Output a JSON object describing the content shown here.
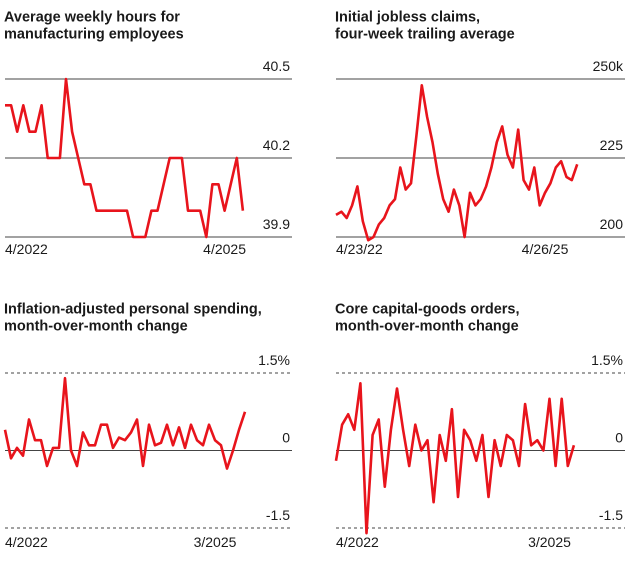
{
  "chart_data": [
    {
      "type": "line",
      "title": [
        "Average weekly hours for",
        "manufacturing employees"
      ],
      "color": "#e8141c",
      "categories": [
        "4/2022",
        null,
        null,
        null,
        null,
        null,
        null,
        null,
        null,
        null,
        null,
        null,
        null,
        null,
        null,
        null,
        null,
        null,
        null,
        null,
        null,
        null,
        null,
        null,
        null,
        null,
        null,
        null,
        null,
        null,
        null,
        null,
        null,
        null,
        null,
        null,
        "4/2025",
        null,
        null,
        null
      ],
      "values": [
        40.4,
        40.4,
        40.3,
        40.4,
        40.3,
        40.3,
        40.4,
        40.2,
        40.2,
        40.2,
        40.5,
        40.3,
        40.2,
        40.1,
        40.1,
        40.0,
        40.0,
        40.0,
        40.0,
        40.0,
        40.0,
        39.9,
        39.9,
        39.9,
        40.0,
        40.0,
        40.1,
        40.2,
        40.2,
        40.2,
        40.0,
        40.0,
        40.0,
        39.9,
        40.1,
        40.1,
        40.0,
        40.1,
        40.2,
        40.0
      ],
      "ylim": [
        39.9,
        40.5
      ],
      "yticks": [
        40.5,
        40.2,
        39.9
      ],
      "grid": true
    },
    {
      "type": "line",
      "title": [
        "Initial jobless claims,",
        "four-week trailing average"
      ],
      "color": "#e8141c",
      "categories": [
        "4/23/22",
        null,
        null,
        null,
        null,
        null,
        null,
        null,
        null,
        null,
        null,
        null,
        null,
        null,
        null,
        null,
        null,
        null,
        null,
        null,
        null,
        null,
        null,
        null,
        null,
        null,
        null,
        null,
        null,
        null,
        null,
        null,
        null,
        null,
        null,
        null,
        null,
        null,
        null,
        "4/26/25",
        null,
        null,
        null,
        null,
        null,
        null
      ],
      "values": [
        207,
        208,
        206,
        210,
        216,
        205,
        199,
        200,
        204,
        206,
        210,
        212,
        222,
        215,
        217,
        232,
        248,
        238,
        230,
        220,
        212,
        208,
        215,
        210,
        200,
        214,
        210,
        212,
        216,
        222,
        230,
        235,
        226,
        222,
        234,
        218,
        215,
        222,
        210,
        214,
        217,
        222,
        224,
        219,
        218,
        223
      ],
      "ylim": [
        200,
        250
      ],
      "yticks": [
        {
          "value": 250,
          "label": "250k"
        },
        225,
        200
      ],
      "grid": true
    },
    {
      "type": "line",
      "title": [
        "Inflation-adjusted personal spending,",
        "month-over-month change"
      ],
      "color": "#e8141c",
      "categories": [
        "4/2022",
        null,
        null,
        null,
        null,
        null,
        null,
        null,
        null,
        null,
        null,
        null,
        null,
        null,
        null,
        null,
        null,
        null,
        null,
        null,
        null,
        null,
        null,
        null,
        null,
        null,
        null,
        null,
        null,
        null,
        null,
        null,
        null,
        null,
        null,
        "3/2025",
        null,
        null,
        null,
        null,
        null
      ],
      "values": [
        0.4,
        -0.15,
        0.05,
        -0.1,
        0.6,
        0.2,
        0.2,
        -0.3,
        0.05,
        0.05,
        1.4,
        0,
        -0.3,
        0.35,
        0.1,
        0.1,
        0.5,
        0.5,
        0.05,
        0.25,
        0.2,
        0.35,
        0.6,
        -0.3,
        0.5,
        0.1,
        0.15,
        0.5,
        0.1,
        0.45,
        0.05,
        0.5,
        0.2,
        0.1,
        0.5,
        0.2,
        0.1,
        -0.35,
        0,
        0.4,
        0.75
      ],
      "ylim": [
        -1.5,
        1.5
      ],
      "yticks": [
        {
          "value": 1.5,
          "label": "1.5%"
        },
        0,
        -1.5
      ],
      "grid": true
    },
    {
      "type": "line",
      "title": [
        "Core capital-goods orders,",
        "month-over-month change"
      ],
      "color": "#e8141c",
      "categories": [
        "4/2022",
        null,
        null,
        null,
        null,
        null,
        null,
        null,
        null,
        null,
        null,
        null,
        null,
        null,
        null,
        null,
        null,
        null,
        null,
        null,
        null,
        null,
        null,
        null,
        null,
        null,
        null,
        null,
        null,
        null,
        null,
        null,
        null,
        null,
        null,
        "3/2025",
        null,
        null,
        null,
        null
      ],
      "values": [
        -0.2,
        0.5,
        0.7,
        0.4,
        1.3,
        -1.6,
        0.3,
        0.6,
        -0.7,
        0.4,
        1.2,
        0.4,
        -0.3,
        0.5,
        0.0,
        0.2,
        -1.0,
        0.3,
        -0.2,
        0.8,
        -0.9,
        0.4,
        0.2,
        -0.2,
        0.3,
        -0.9,
        0.2,
        -0.3,
        0.3,
        0.2,
        -0.3,
        0.9,
        0.1,
        0.2,
        0.0,
        1.0,
        -0.3,
        1.0,
        -0.3,
        0.1
      ],
      "ylim": [
        -1.5,
        1.5
      ],
      "yticks": [
        {
          "value": 1.5,
          "label": "1.5%"
        },
        0,
        -1.5
      ],
      "grid": true
    }
  ]
}
